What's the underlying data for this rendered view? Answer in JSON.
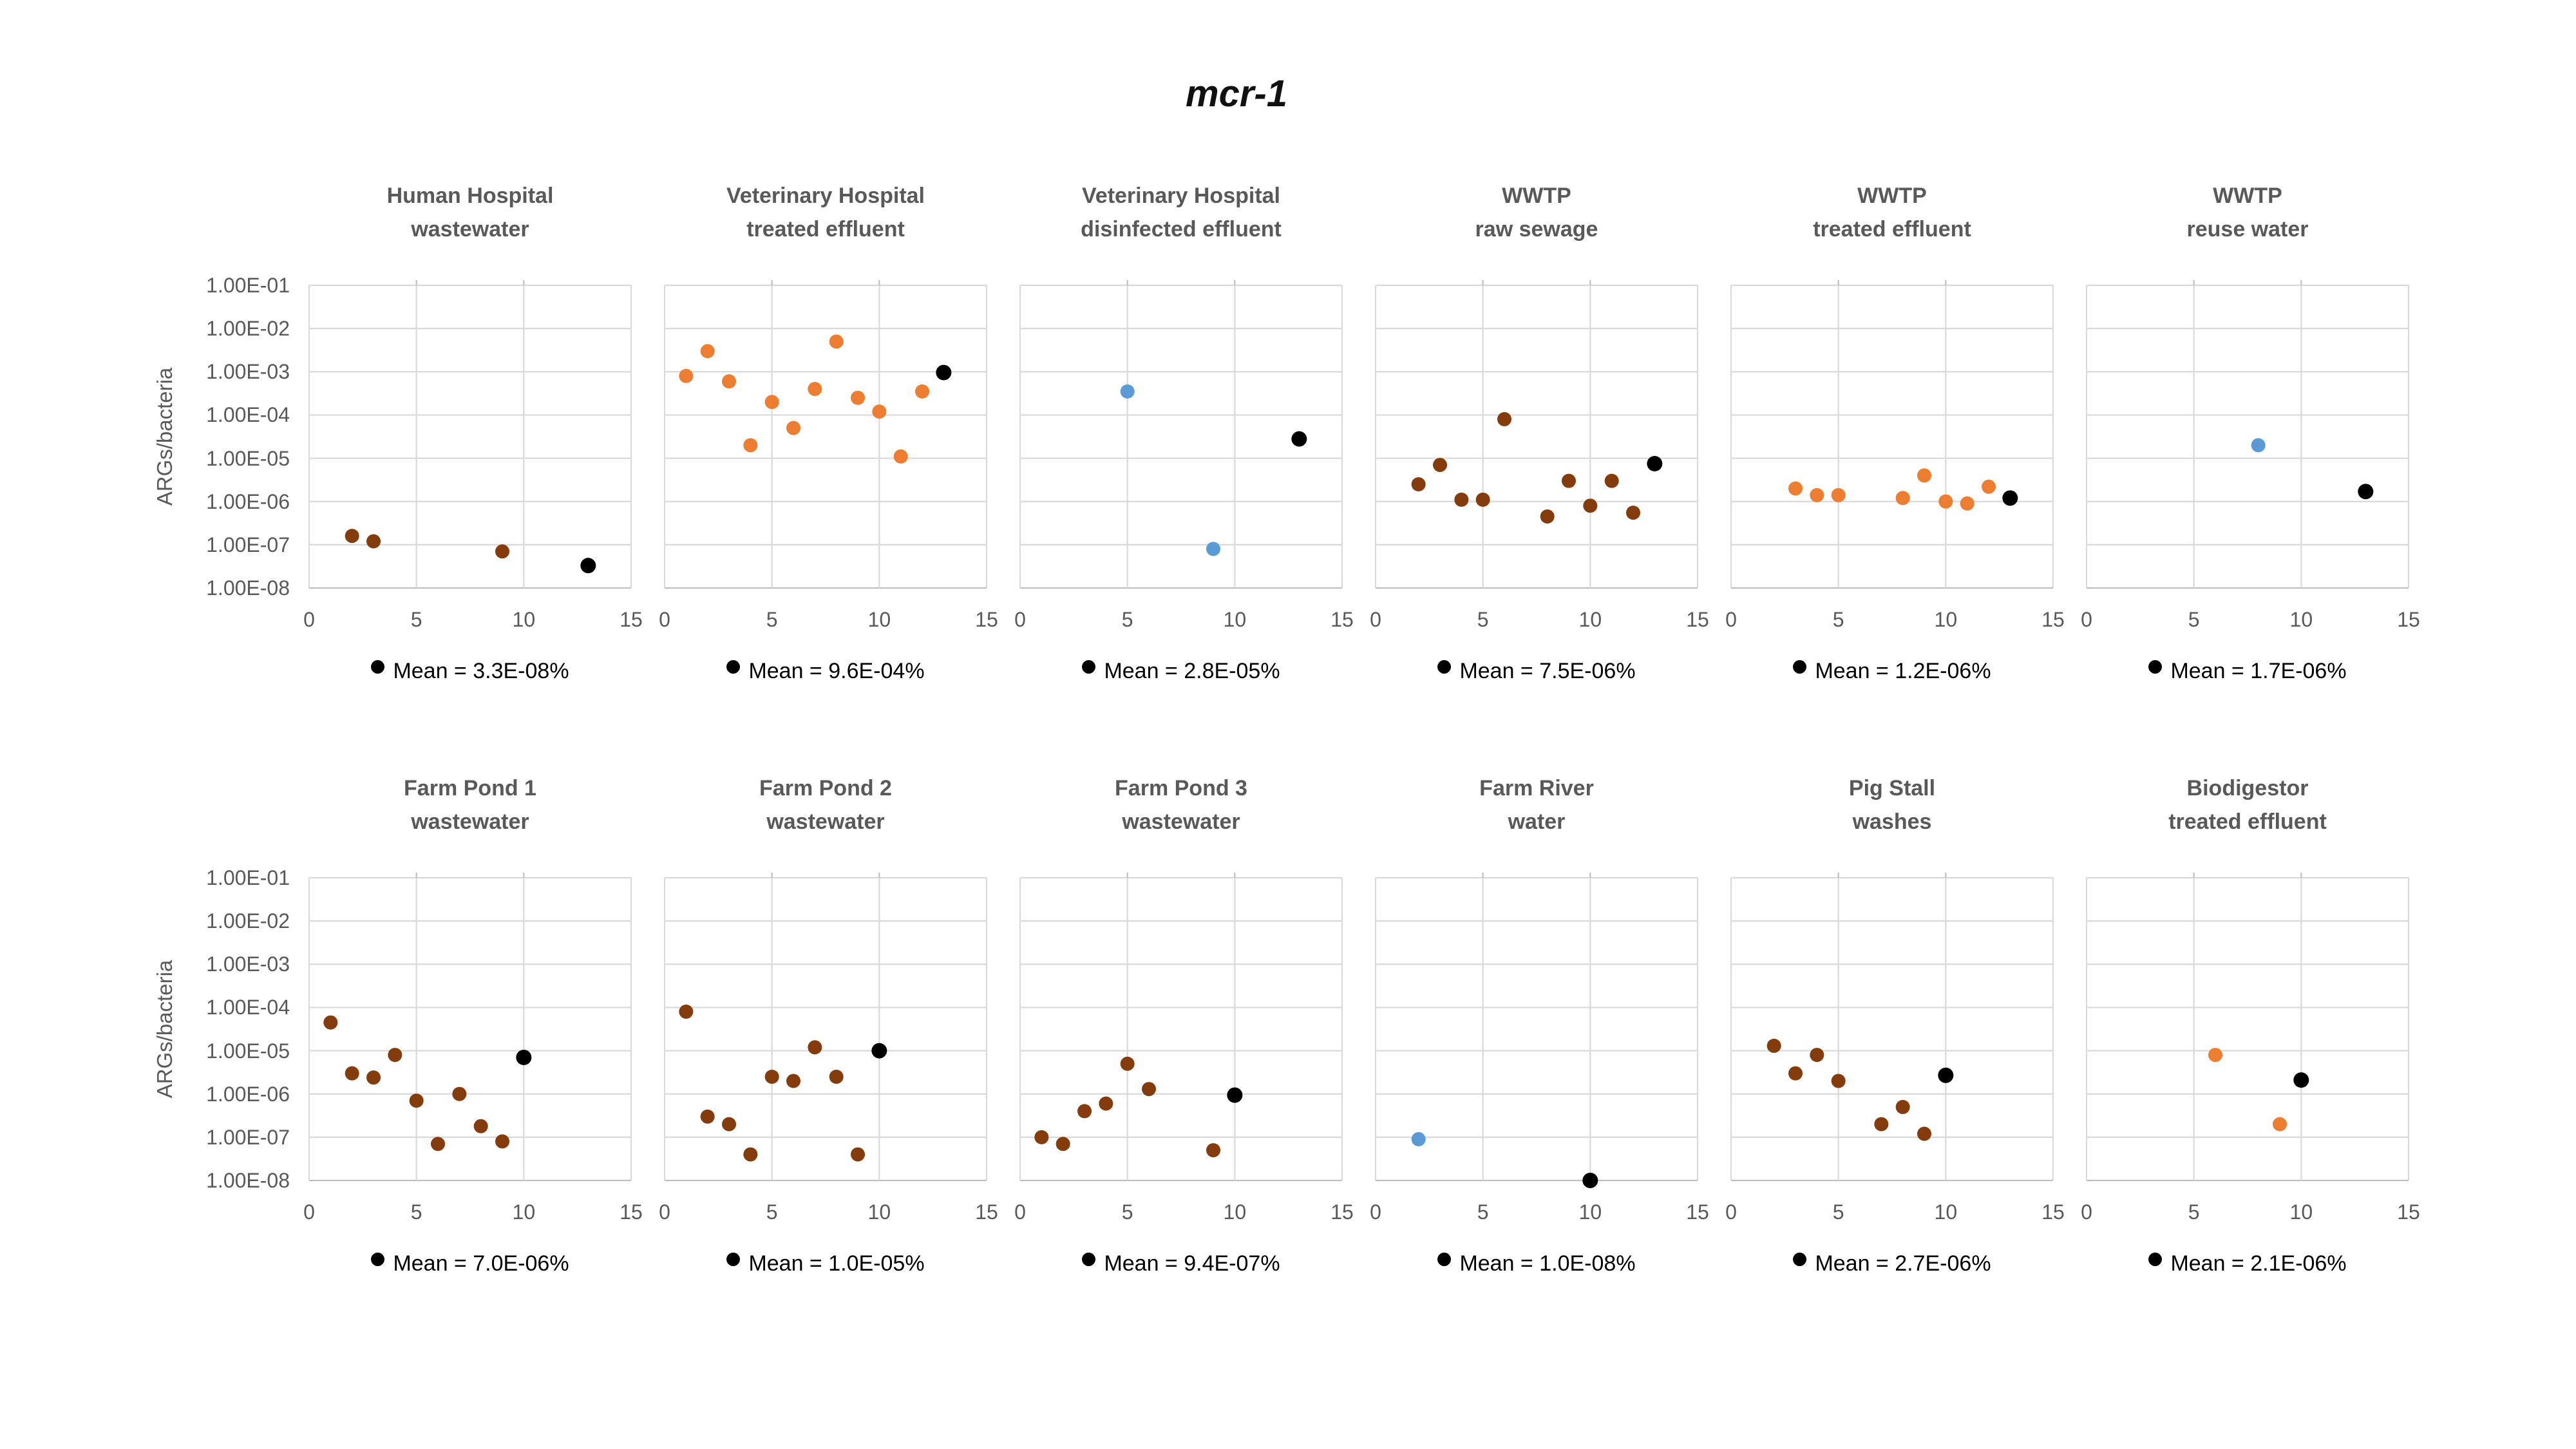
{
  "figure_title": "mcr-1",
  "y_axis": {
    "label": "ARGs/bacteria",
    "scale": "log",
    "min": 1e-08,
    "max": 0.1,
    "tick_labels": [
      "1.00E-01",
      "1.00E-02",
      "1.00E-03",
      "1.00E-04",
      "1.00E-05",
      "1.00E-06",
      "1.00E-07",
      "1.00E-08"
    ]
  },
  "x_axis": {
    "min": 0,
    "max": 15,
    "tick_values": [
      0,
      5,
      10,
      15
    ],
    "tick_labels": [
      "0",
      "5",
      "10",
      "15"
    ]
  },
  "colors": {
    "brown": "#843C0C",
    "orange": "#ED7D31",
    "blue": "#5B9BD5",
    "black": "#000000",
    "grid": "#D9D9D9",
    "axis_line": "#BFBFBF",
    "label_gray": "#595959"
  },
  "legend_note": "black dot = mean",
  "chart_data": [
    {
      "type": "scatter",
      "title_line1": "Human Hospital",
      "title_line2": "wastewater",
      "mean_label": "Mean = 3.3E-08%",
      "points": [
        {
          "x": 2,
          "y": 1.6e-07,
          "color": "brown"
        },
        {
          "x": 3,
          "y": 1.2e-07,
          "color": "brown"
        },
        {
          "x": 9,
          "y": 7e-08,
          "color": "brown"
        }
      ],
      "mean_point": {
        "x": 13,
        "y": 3.3e-08
      }
    },
    {
      "type": "scatter",
      "title_line1": "Veterinary Hospital",
      "title_line2": "treated effluent",
      "mean_label": "Mean = 9.6E-04%",
      "points": [
        {
          "x": 1,
          "y": 0.0008,
          "color": "orange"
        },
        {
          "x": 2,
          "y": 0.003,
          "color": "orange"
        },
        {
          "x": 3,
          "y": 0.0006,
          "color": "orange"
        },
        {
          "x": 4,
          "y": 2e-05,
          "color": "orange"
        },
        {
          "x": 5,
          "y": 0.0002,
          "color": "orange"
        },
        {
          "x": 6,
          "y": 5e-05,
          "color": "orange"
        },
        {
          "x": 7,
          "y": 0.0004,
          "color": "orange"
        },
        {
          "x": 8,
          "y": 0.005,
          "color": "orange"
        },
        {
          "x": 9,
          "y": 0.00025,
          "color": "orange"
        },
        {
          "x": 10,
          "y": 0.00012,
          "color": "orange"
        },
        {
          "x": 11,
          "y": 1.1e-05,
          "color": "orange"
        },
        {
          "x": 12,
          "y": 0.00035,
          "color": "orange"
        }
      ],
      "mean_point": {
        "x": 13,
        "y": 0.00096
      }
    },
    {
      "type": "scatter",
      "title_line1": "Veterinary Hospital",
      "title_line2": "disinfected effluent",
      "mean_label": "Mean = 2.8E-05%",
      "points": [
        {
          "x": 5,
          "y": 0.00035,
          "color": "blue"
        },
        {
          "x": 9,
          "y": 8e-08,
          "color": "blue"
        }
      ],
      "mean_point": {
        "x": 13,
        "y": 2.8e-05
      }
    },
    {
      "type": "scatter",
      "title_line1": "WWTP",
      "title_line2": "raw sewage",
      "mean_label": "Mean = 7.5E-06%",
      "points": [
        {
          "x": 2,
          "y": 2.5e-06,
          "color": "brown"
        },
        {
          "x": 3,
          "y": 7e-06,
          "color": "brown"
        },
        {
          "x": 4,
          "y": 1.1e-06,
          "color": "brown"
        },
        {
          "x": 5,
          "y": 1.1e-06,
          "color": "brown"
        },
        {
          "x": 6,
          "y": 8e-05,
          "color": "brown"
        },
        {
          "x": 8,
          "y": 4.5e-07,
          "color": "brown"
        },
        {
          "x": 9,
          "y": 3e-06,
          "color": "brown"
        },
        {
          "x": 10,
          "y": 8e-07,
          "color": "brown"
        },
        {
          "x": 11,
          "y": 3e-06,
          "color": "brown"
        },
        {
          "x": 12,
          "y": 5.5e-07,
          "color": "brown"
        }
      ],
      "mean_point": {
        "x": 13,
        "y": 7.5e-06
      }
    },
    {
      "type": "scatter",
      "title_line1": "WWTP",
      "title_line2": "treated effluent",
      "mean_label": "Mean = 1.2E-06%",
      "points": [
        {
          "x": 3,
          "y": 2e-06,
          "color": "orange"
        },
        {
          "x": 4,
          "y": 1.4e-06,
          "color": "orange"
        },
        {
          "x": 5,
          "y": 1.4e-06,
          "color": "orange"
        },
        {
          "x": 8,
          "y": 1.2e-06,
          "color": "orange"
        },
        {
          "x": 9,
          "y": 4e-06,
          "color": "orange"
        },
        {
          "x": 10,
          "y": 1e-06,
          "color": "orange"
        },
        {
          "x": 11,
          "y": 9e-07,
          "color": "orange"
        },
        {
          "x": 12,
          "y": 2.2e-06,
          "color": "orange"
        }
      ],
      "mean_point": {
        "x": 13,
        "y": 1.2e-06
      }
    },
    {
      "type": "scatter",
      "title_line1": "WWTP",
      "title_line2": "reuse water",
      "mean_label": "Mean = 1.7E-06%",
      "points": [
        {
          "x": 8,
          "y": 2e-05,
          "color": "blue"
        }
      ],
      "mean_point": {
        "x": 13,
        "y": 1.7e-06
      }
    },
    {
      "type": "scatter",
      "title_line1": "Farm Pond 1",
      "title_line2": "wastewater",
      "mean_label": "Mean = 7.0E-06%",
      "points": [
        {
          "x": 1,
          "y": 4.5e-05,
          "color": "brown"
        },
        {
          "x": 2,
          "y": 3e-06,
          "color": "brown"
        },
        {
          "x": 3,
          "y": 2.4e-06,
          "color": "brown"
        },
        {
          "x": 4,
          "y": 8e-06,
          "color": "brown"
        },
        {
          "x": 5,
          "y": 7e-07,
          "color": "brown"
        },
        {
          "x": 6,
          "y": 7e-08,
          "color": "brown"
        },
        {
          "x": 7,
          "y": 1e-06,
          "color": "brown"
        },
        {
          "x": 8,
          "y": 1.8e-07,
          "color": "brown"
        },
        {
          "x": 9,
          "y": 8e-08,
          "color": "brown"
        }
      ],
      "mean_point": {
        "x": 10,
        "y": 7e-06
      }
    },
    {
      "type": "scatter",
      "title_line1": "Farm Pond 2",
      "title_line2": "wastewater",
      "mean_label": "Mean = 1.0E-05%",
      "points": [
        {
          "x": 1,
          "y": 8e-05,
          "color": "brown"
        },
        {
          "x": 2,
          "y": 3e-07,
          "color": "brown"
        },
        {
          "x": 3,
          "y": 2e-07,
          "color": "brown"
        },
        {
          "x": 4,
          "y": 4e-08,
          "color": "brown"
        },
        {
          "x": 5,
          "y": 2.5e-06,
          "color": "brown"
        },
        {
          "x": 6,
          "y": 2e-06,
          "color": "brown"
        },
        {
          "x": 7,
          "y": 1.2e-05,
          "color": "brown"
        },
        {
          "x": 8,
          "y": 2.5e-06,
          "color": "brown"
        },
        {
          "x": 9,
          "y": 4e-08,
          "color": "brown"
        }
      ],
      "mean_point": {
        "x": 10,
        "y": 1e-05
      }
    },
    {
      "type": "scatter",
      "title_line1": "Farm Pond 3",
      "title_line2": "wastewater",
      "mean_label": "Mean = 9.4E-07%",
      "points": [
        {
          "x": 1,
          "y": 1e-07,
          "color": "brown"
        },
        {
          "x": 2,
          "y": 7e-08,
          "color": "brown"
        },
        {
          "x": 3,
          "y": 4e-07,
          "color": "brown"
        },
        {
          "x": 4,
          "y": 6e-07,
          "color": "brown"
        },
        {
          "x": 5,
          "y": 5e-06,
          "color": "brown"
        },
        {
          "x": 6,
          "y": 1.3e-06,
          "color": "brown"
        },
        {
          "x": 9,
          "y": 5e-08,
          "color": "brown"
        }
      ],
      "mean_point": {
        "x": 10,
        "y": 9.4e-07
      }
    },
    {
      "type": "scatter",
      "title_line1": "Farm River",
      "title_line2": "water",
      "mean_label": "Mean = 1.0E-08%",
      "points": [
        {
          "x": 2,
          "y": 9e-08,
          "color": "blue"
        }
      ],
      "mean_point": {
        "x": 10,
        "y": 1e-08
      }
    },
    {
      "type": "scatter",
      "title_line1": "Pig Stall",
      "title_line2": "washes",
      "mean_label": "Mean = 2.7E-06%",
      "points": [
        {
          "x": 2,
          "y": 1.3e-05,
          "color": "brown"
        },
        {
          "x": 3,
          "y": 3e-06,
          "color": "brown"
        },
        {
          "x": 4,
          "y": 8e-06,
          "color": "brown"
        },
        {
          "x": 5,
          "y": 2e-06,
          "color": "brown"
        },
        {
          "x": 7,
          "y": 2e-07,
          "color": "brown"
        },
        {
          "x": 8,
          "y": 5e-07,
          "color": "brown"
        },
        {
          "x": 9,
          "y": 1.2e-07,
          "color": "brown"
        }
      ],
      "mean_point": {
        "x": 10,
        "y": 2.7e-06
      }
    },
    {
      "type": "scatter",
      "title_line1": "Biodigestor",
      "title_line2": "treated effluent",
      "mean_label": "Mean = 2.1E-06%",
      "points": [
        {
          "x": 6,
          "y": 8e-06,
          "color": "orange"
        },
        {
          "x": 9,
          "y": 2e-07,
          "color": "orange"
        }
      ],
      "mean_point": {
        "x": 10,
        "y": 2.1e-06
      }
    }
  ]
}
